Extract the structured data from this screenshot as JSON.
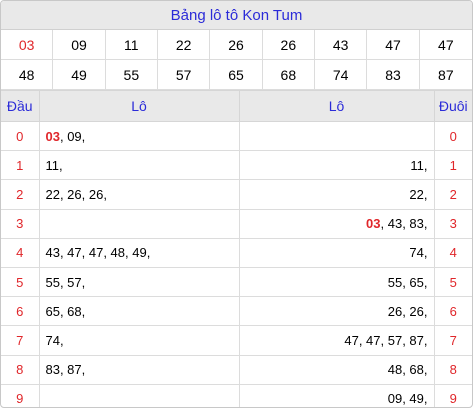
{
  "title": "Bảng lô tô Kon Tum",
  "numbers": [
    "03",
    "09",
    "11",
    "22",
    "26",
    "26",
    "43",
    "47",
    "47",
    "48",
    "49",
    "55",
    "57",
    "65",
    "68",
    "74",
    "83",
    "87"
  ],
  "highlight_number": "03",
  "headers": {
    "dau": "Đầu",
    "lo_left": "Lô",
    "lo_right": "Lô",
    "duoi": "Đuôi"
  },
  "rows": [
    {
      "dau": "0",
      "left": [
        {
          "t": "03",
          "r": true
        },
        {
          "t": ", 09,",
          "r": false
        }
      ],
      "right": [],
      "duoi": "0"
    },
    {
      "dau": "1",
      "left": [
        {
          "t": "11,",
          "r": false
        }
      ],
      "right": [
        {
          "t": "11,",
          "r": false
        }
      ],
      "duoi": "1"
    },
    {
      "dau": "2",
      "left": [
        {
          "t": "22, 26, 26,",
          "r": false
        }
      ],
      "right": [
        {
          "t": "22,",
          "r": false
        }
      ],
      "duoi": "2"
    },
    {
      "dau": "3",
      "left": [],
      "right": [
        {
          "t": "03",
          "r": true
        },
        {
          "t": ", 43, 83,",
          "r": false
        }
      ],
      "duoi": "3"
    },
    {
      "dau": "4",
      "left": [
        {
          "t": "43, 47, 47, 48, 49,",
          "r": false
        }
      ],
      "right": [
        {
          "t": "74,",
          "r": false
        }
      ],
      "duoi": "4"
    },
    {
      "dau": "5",
      "left": [
        {
          "t": "55, 57,",
          "r": false
        }
      ],
      "right": [
        {
          "t": "55, 65,",
          "r": false
        }
      ],
      "duoi": "5"
    },
    {
      "dau": "6",
      "left": [
        {
          "t": "65, 68,",
          "r": false
        }
      ],
      "right": [
        {
          "t": "26, 26,",
          "r": false
        }
      ],
      "duoi": "6"
    },
    {
      "dau": "7",
      "left": [
        {
          "t": "74,",
          "r": false
        }
      ],
      "right": [
        {
          "t": "47, 47, 57, 87,",
          "r": false
        }
      ],
      "duoi": "7"
    },
    {
      "dau": "8",
      "left": [
        {
          "t": "83, 87,",
          "r": false
        }
      ],
      "right": [
        {
          "t": "48, 68,",
          "r": false
        }
      ],
      "duoi": "8"
    },
    {
      "dau": "9",
      "left": [],
      "right": [
        {
          "t": "09, 49,",
          "r": false
        }
      ],
      "duoi": "9"
    }
  ],
  "colors": {
    "accent": "#2b2bd8",
    "red": "#e0262a",
    "header_bg": "#e9e9e9"
  }
}
